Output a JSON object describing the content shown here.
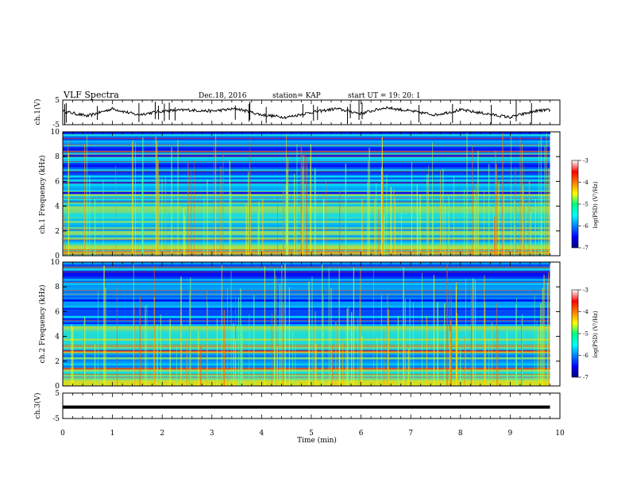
{
  "header": {
    "title": "VLF Spectra",
    "date": "Dec.18, 2016",
    "station": "station= KAP",
    "start_ut": "start  UT =   19: 20: 1"
  },
  "chart_data": [
    {
      "type": "line",
      "name": "ch1-voltage",
      "ylabel": "ch.1(V)",
      "ylim": [
        -5,
        5
      ],
      "ytick_labels": [
        "5",
        "-5"
      ],
      "xlim": [
        0,
        10
      ],
      "x": [
        0,
        0.5,
        1,
        1.5,
        2,
        2.5,
        3,
        3.5,
        4,
        4.5,
        5,
        5.5,
        6,
        6.5,
        7,
        7.5,
        8,
        8.5,
        9,
        9.5,
        9.8
      ],
      "values": [
        0.5,
        -1.5,
        1.5,
        -1,
        0.5,
        1,
        0.5,
        1.5,
        -1,
        -2,
        0,
        1.5,
        -0.5,
        2,
        0.5,
        -1,
        1,
        -0.5,
        -2,
        0.5,
        1
      ]
    },
    {
      "type": "heatmap",
      "name": "ch1-spectrogram",
      "ylabel": "ch.1 Frequency (kHz)",
      "ylim": [
        0,
        10
      ],
      "ytick_labels": [
        "0",
        "2",
        "4",
        "6",
        "8",
        "10"
      ],
      "xlim": [
        0,
        9.8
      ],
      "colorbar": {
        "label": "log(PSD) (V²/Hz)",
        "range": [
          -7,
          -3
        ],
        "tick_labels": [
          "-3",
          "-4",
          "-5",
          "-6",
          "-7"
        ]
      }
    },
    {
      "type": "heatmap",
      "name": "ch2-spectrogram",
      "ylabel": "ch.2 Frequency (kHz)",
      "ylim": [
        0,
        10
      ],
      "ytick_labels": [
        "0",
        "2",
        "4",
        "6",
        "8",
        "10"
      ],
      "xlim": [
        0,
        9.8
      ],
      "colorbar": {
        "label": "log(PSD) (V²/Hz)",
        "range": [
          -7,
          -3
        ],
        "tick_labels": [
          "-3",
          "-4",
          "-5",
          "-6",
          "-7"
        ]
      }
    },
    {
      "type": "line",
      "name": "ch3-voltage",
      "ylabel": "ch.3(V)",
      "ylim": [
        -5,
        5
      ],
      "ytick_labels": [
        "5",
        "-5"
      ],
      "xlim": [
        0,
        10
      ],
      "x": [
        0,
        9.8
      ],
      "values": [
        -0.5,
        -0.5
      ]
    }
  ],
  "xaxis": {
    "label": "Time (min)",
    "range": [
      0,
      10
    ],
    "tick_labels": [
      "0",
      "1",
      "2",
      "3",
      "4",
      "5",
      "6",
      "7",
      "8",
      "9",
      "10"
    ]
  },
  "colors": {
    "trace": "#000000",
    "colormap": [
      "#00007f",
      "#0000ff",
      "#007fff",
      "#00ffff",
      "#00ff7f",
      "#7fff00",
      "#ffff00",
      "#ff7f00",
      "#ff0000",
      "#7f0000"
    ]
  }
}
